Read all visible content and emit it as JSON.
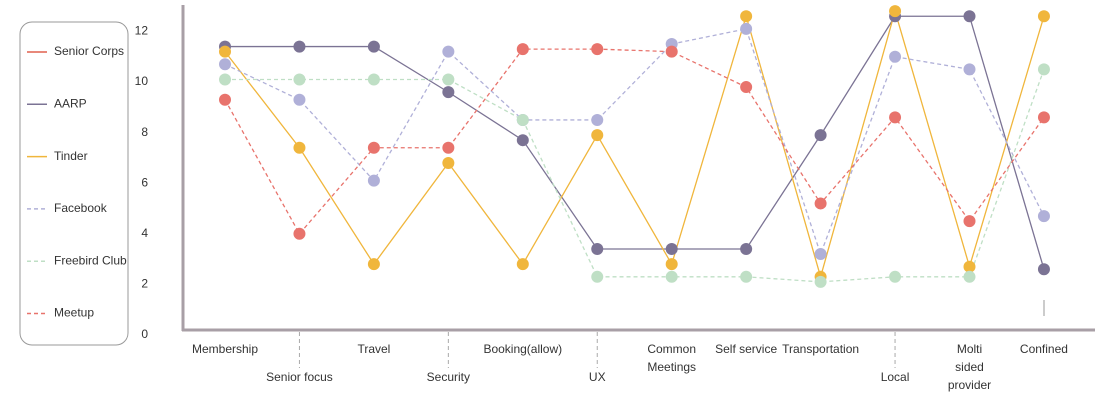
{
  "chart_data": {
    "type": "line",
    "categories": [
      "Membership",
      "Senior focus",
      "Travel",
      "Security",
      "Booking(allow)",
      "UX",
      "Common Meetings",
      "Self service",
      "Transportation",
      "Local",
      "Molti sided provider",
      "Confined"
    ],
    "series": [
      {
        "name": "Senior Corps",
        "color": "#e0604f",
        "dashed": false,
        "values": [
          null,
          null,
          null,
          null,
          null,
          null,
          null,
          null,
          null,
          null,
          null,
          null
        ]
      },
      {
        "name": "AARP",
        "color": "#7b7394",
        "dashed": false,
        "values": [
          11.4,
          11.4,
          11.4,
          9.6,
          7.7,
          3.4,
          3.4,
          3.4,
          7.9,
          12.6,
          12.6,
          2.6
        ]
      },
      {
        "name": "Tinder",
        "color": "#f0b63c",
        "dashed": false,
        "values": [
          11.2,
          7.4,
          2.8,
          6.8,
          2.8,
          7.9,
          2.8,
          12.6,
          2.3,
          12.8,
          2.7,
          12.6
        ]
      },
      {
        "name": "Facebook",
        "color": "#b0b0d8",
        "dashed": true,
        "values": [
          10.7,
          9.3,
          6.1,
          11.2,
          8.5,
          8.5,
          11.5,
          12.1,
          3.2,
          11.0,
          10.5,
          4.7
        ]
      },
      {
        "name": "Freebird Club",
        "color": "#bfdfc5",
        "dashed": true,
        "values": [
          10.1,
          10.1,
          10.1,
          10.1,
          8.5,
          2.3,
          2.3,
          2.3,
          2.1,
          2.3,
          2.3,
          10.5
        ]
      },
      {
        "name": "Meetup",
        "color": "#e8736c",
        "dashed": true,
        "values": [
          9.3,
          4.0,
          7.4,
          7.4,
          11.3,
          11.3,
          11.2,
          9.8,
          5.2,
          8.6,
          4.5,
          8.6
        ]
      }
    ],
    "ylim": [
      0,
      13
    ],
    "yticks": [
      0,
      2,
      4,
      6,
      8,
      10,
      12
    ],
    "legend": "left"
  }
}
